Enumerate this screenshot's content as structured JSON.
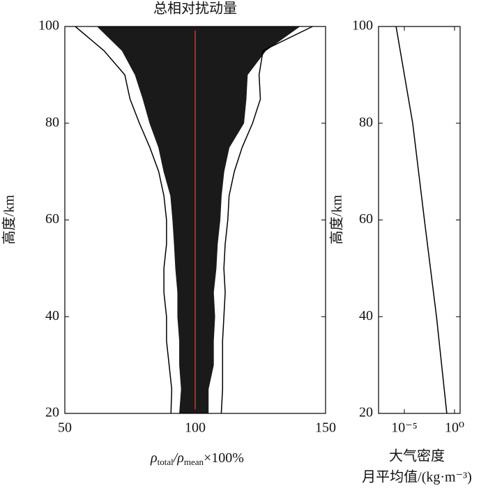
{
  "chart_data": [
    {
      "type": "line",
      "title": "总相对扰动量",
      "ylabel": "高度/km",
      "xlabel_parts": [
        "ρ",
        "total",
        "/ρ",
        "mean",
        "×100%"
      ],
      "xlim": [
        50,
        150
      ],
      "xticks": [
        50,
        100,
        150
      ],
      "ylim": [
        20,
        100
      ],
      "yticks": [
        20,
        40,
        60,
        80,
        100
      ],
      "y": [
        20,
        25,
        30,
        35,
        40,
        45,
        50,
        55,
        60,
        65,
        70,
        75,
        80,
        85,
        90,
        95,
        100
      ],
      "band": {
        "color": "#1a1a1a",
        "lower": [
          94,
          94.7,
          94,
          94,
          93.3,
          93.3,
          92.5,
          92,
          91.4,
          90.6,
          88,
          86,
          82.6,
          80,
          77,
          72,
          62.5
        ],
        "upper": [
          105,
          105,
          107,
          107,
          107.5,
          107,
          108,
          108.5,
          109.5,
          110,
          111,
          113,
          118.6,
          119.5,
          120,
          127,
          140
        ]
      },
      "series": [
        {
          "color": "#000000",
          "values": [
            90.7,
            91,
            90,
            89,
            89,
            88,
            88,
            89,
            89,
            88,
            86,
            82.6,
            78.6,
            75,
            73,
            65,
            54
          ]
        },
        {
          "color": "#000000",
          "values": [
            110,
            110.5,
            110.5,
            110.5,
            111,
            111.5,
            111,
            111.5,
            112.5,
            113,
            115,
            118,
            122,
            125,
            124.5,
            126,
            145
          ]
        },
        {
          "color": "#e0301e",
          "values": [
            100,
            100,
            100,
            100,
            100,
            100,
            100,
            100,
            100,
            100,
            100,
            100,
            100,
            100,
            100,
            100,
            100
          ]
        }
      ]
    },
    {
      "type": "line",
      "ylabel": "高度/km",
      "xlabel_lines": [
        "大气密度",
        "月平均值/(kg·m⁻³)"
      ],
      "log_x": true,
      "xlim": [
        2.7e-08,
        3.6
      ],
      "xticks": [
        {
          "value": 1e-05,
          "label": "10⁻⁵"
        },
        {
          "value": 1,
          "label": "10⁰"
        }
      ],
      "ylim": [
        20,
        100
      ],
      "yticks": [
        20,
        40,
        60,
        80,
        100
      ],
      "y": [
        20,
        40,
        60,
        80,
        100
      ],
      "series": [
        {
          "color": "#000000",
          "values": [
            0.17,
            0.016,
            0.001,
            6.8e-05,
            1.5e-06
          ]
        }
      ]
    }
  ]
}
